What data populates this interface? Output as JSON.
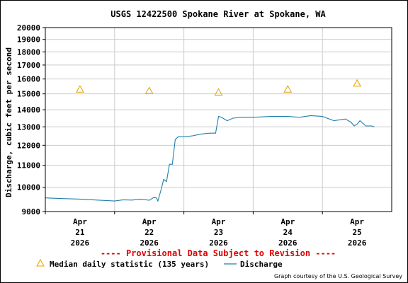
{
  "chart_data": {
    "type": "line",
    "title": "USGS 12422500 Spokane River at Spokane, WA",
    "ylabel": "Discharge, cubic feet per second",
    "xlabel": "",
    "y_scale": "log",
    "ylim": [
      9000,
      20000
    ],
    "xlim": [
      "2026-04-20T12:00",
      "2026-04-25T12:00"
    ],
    "y_ticks": [
      "9000",
      "10000",
      "11000",
      "12000",
      "13000",
      "14000",
      "15000",
      "16000",
      "17000",
      "18000",
      "19000",
      "20000"
    ],
    "x_ticks": [
      {
        "month": "Apr",
        "day": "21",
        "year": "2026",
        "date": "2026-04-21"
      },
      {
        "month": "Apr",
        "day": "22",
        "year": "2026",
        "date": "2026-04-22"
      },
      {
        "month": "Apr",
        "day": "23",
        "year": "2026",
        "date": "2026-04-23"
      },
      {
        "month": "Apr",
        "day": "24",
        "year": "2026",
        "date": "2026-04-24"
      },
      {
        "month": "Apr",
        "day": "25",
        "year": "2026",
        "date": "2026-04-25"
      }
    ],
    "grid": true,
    "series": [
      {
        "name": "Discharge",
        "color": "#1f7fa8",
        "x": [
          "2026-04-20T12:00",
          "2026-04-20T18:00",
          "2026-04-21T00:00",
          "2026-04-21T06:00",
          "2026-04-21T12:00",
          "2026-04-21T15:00",
          "2026-04-21T18:00",
          "2026-04-21T21:00",
          "2026-04-22T00:00",
          "2026-04-22T01:30",
          "2026-04-22T02:30",
          "2026-04-22T03:00",
          "2026-04-22T04:00",
          "2026-04-22T05:00",
          "2026-04-22T06:00",
          "2026-04-22T07:00",
          "2026-04-22T08:00",
          "2026-04-22T09:00",
          "2026-04-22T10:00",
          "2026-04-22T12:00",
          "2026-04-22T15:00",
          "2026-04-22T18:00",
          "2026-04-22T21:00",
          "2026-04-22T23:00",
          "2026-04-23T00:00",
          "2026-04-23T01:00",
          "2026-04-23T03:00",
          "2026-04-23T05:00",
          "2026-04-23T08:00",
          "2026-04-23T12:00",
          "2026-04-23T18:00",
          "2026-04-24T00:00",
          "2026-04-24T04:00",
          "2026-04-24T08:00",
          "2026-04-24T12:00",
          "2026-04-24T16:00",
          "2026-04-24T20:00",
          "2026-04-24T22:00",
          "2026-04-24T23:00",
          "2026-04-25T00:00",
          "2026-04-25T01:00",
          "2026-04-25T03:00",
          "2026-04-25T05:00",
          "2026-04-25T06:00"
        ],
        "values": [
          9550,
          9520,
          9500,
          9460,
          9420,
          9470,
          9460,
          9500,
          9450,
          9560,
          9550,
          9420,
          9850,
          10350,
          10250,
          11050,
          11050,
          12300,
          12450,
          12450,
          12500,
          12600,
          12650,
          12650,
          13600,
          13550,
          13350,
          13500,
          13550,
          13550,
          13600,
          13600,
          13550,
          13650,
          13600,
          13350,
          13450,
          13250,
          13050,
          13150,
          13350,
          13050,
          13050,
          13000
        ]
      }
    ],
    "median": {
      "name": "Median daily statistic (135 years)",
      "color": "#e6a000",
      "x": [
        "2026-04-21",
        "2026-04-22",
        "2026-04-23",
        "2026-04-24",
        "2026-04-25"
      ],
      "values": [
        15300,
        15200,
        15100,
        15300,
        15700
      ]
    },
    "banner": "---- Provisional Data Subject to Revision ----",
    "banner_color": "#e00000",
    "credit": "Graph courtesy of the U.S. Geological Survey"
  }
}
